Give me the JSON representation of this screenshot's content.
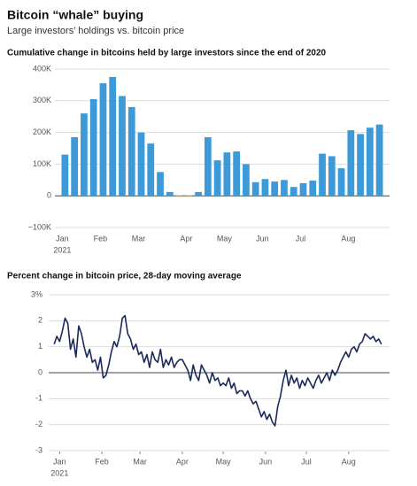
{
  "header": {
    "title": "Bitcoin “whale” buying",
    "subtitle": "Large investors’ holdings vs. bitcoin price"
  },
  "chart_data": [
    {
      "type": "bar",
      "title": "Cumulative change in bitcoins held by large investors since the end of 2020",
      "categories": [
        "Jan",
        null,
        null,
        null,
        "Feb",
        null,
        null,
        null,
        "Mar",
        null,
        null,
        null,
        null,
        "Apr",
        null,
        null,
        null,
        "May",
        null,
        null,
        null,
        "Jun",
        null,
        null,
        null,
        "Jul",
        null,
        null,
        null,
        null,
        "Aug",
        null,
        null,
        null
      ],
      "x_sublabel": "2021",
      "values": [
        130000,
        185000,
        260000,
        305000,
        355000,
        375000,
        315000,
        280000,
        200000,
        165000,
        75000,
        12000,
        -3000,
        -3000,
        12000,
        185000,
        112000,
        137000,
        140000,
        100000,
        43000,
        53000,
        45000,
        50000,
        28000,
        40000,
        48000,
        133000,
        125000,
        87000,
        207000,
        195000,
        215000,
        225000
      ],
      "color": "#3d9ad9",
      "negative_color": "#e8b424",
      "ylim": [
        -100000,
        400000
      ],
      "yticks": [
        {
          "value": -100000,
          "label": "−100K"
        },
        0,
        {
          "value": 100000,
          "label": "100K"
        },
        {
          "value": 200000,
          "label": "200K"
        },
        {
          "value": 300000,
          "label": "300K"
        },
        {
          "value": 400000,
          "label": "400K"
        }
      ],
      "grid": true
    },
    {
      "type": "line",
      "title": "Percent change in bitcoin price, 28-day moving average",
      "x": [
        -3,
        -1,
        1,
        3,
        5,
        7,
        9,
        11,
        13,
        15,
        17,
        19,
        21,
        23,
        25,
        27,
        29,
        31,
        33,
        35,
        37,
        39,
        41,
        43,
        45,
        47,
        49,
        51,
        53,
        55,
        57,
        59,
        61,
        63,
        65,
        67,
        69,
        71,
        73,
        75,
        77,
        79,
        81,
        83,
        85,
        87,
        89,
        91,
        93,
        95,
        97,
        99,
        101,
        103,
        105,
        107,
        109,
        111,
        113,
        115,
        117,
        119,
        121,
        123,
        125,
        127,
        129,
        131,
        133,
        135,
        137,
        139,
        141,
        143,
        145,
        147,
        149,
        151,
        153,
        155,
        157,
        159,
        161,
        163,
        165,
        167,
        169,
        171,
        173,
        175,
        177,
        179,
        181,
        183,
        185,
        187,
        189,
        191,
        193,
        195,
        197,
        199,
        201,
        203,
        205,
        207,
        209,
        211,
        213,
        215,
        217,
        219,
        221,
        223,
        225,
        227,
        229,
        231,
        233,
        235,
        237
      ],
      "series": [
        {
          "name": "Bitcoin price",
          "color": "#1b2a5c",
          "values": [
            1.1,
            1.4,
            1.2,
            1.6,
            2.1,
            1.9,
            0.9,
            1.3,
            0.6,
            1.8,
            1.5,
            1.0,
            0.6,
            0.9,
            0.4,
            0.5,
            0.1,
            0.6,
            -0.2,
            -0.1,
            0.3,
            0.8,
            1.2,
            1.0,
            1.4,
            2.1,
            2.2,
            1.5,
            1.3,
            0.9,
            1.1,
            0.7,
            0.8,
            0.4,
            0.7,
            0.2,
            0.8,
            0.5,
            0.4,
            0.9,
            0.2,
            0.5,
            0.3,
            0.6,
            0.2,
            0.4,
            0.5,
            0.5,
            0.3,
            0.1,
            -0.3,
            0.3,
            -0.1,
            -0.3,
            0.3,
            0.1,
            -0.1,
            -0.4,
            0.0,
            -0.3,
            -0.2,
            -0.5,
            -0.4,
            -0.5,
            -0.2,
            -0.6,
            -0.4,
            -0.8,
            -0.7,
            -0.7,
            -0.9,
            -0.7,
            -1.0,
            -1.2,
            -1.1,
            -1.4,
            -1.7,
            -1.5,
            -1.8,
            -1.6,
            -1.9,
            -2.05,
            -1.3,
            -0.9,
            -0.3,
            0.1,
            -0.5,
            -0.1,
            -0.4,
            -0.2,
            -0.6,
            -0.3,
            -0.5,
            -0.2,
            -0.4,
            -0.6,
            -0.3,
            -0.1,
            -0.4,
            -0.2,
            0.0,
            -0.3,
            0.1,
            -0.1,
            0.1,
            0.4,
            0.6,
            0.8,
            0.6,
            0.9,
            1.0,
            0.8,
            1.1,
            1.2,
            1.5,
            1.4,
            1.3,
            1.4,
            1.2,
            1.3,
            1.1
          ]
        }
      ],
      "xlim": [
        -7,
        243
      ],
      "xticks": [
        {
          "value": 1,
          "label": "Jan"
        },
        {
          "value": 32,
          "label": "Feb"
        },
        {
          "value": 60,
          "label": "Mar"
        },
        {
          "value": 91,
          "label": "Apr"
        },
        {
          "value": 121,
          "label": "May"
        },
        {
          "value": 152,
          "label": "Jun"
        },
        {
          "value": 182,
          "label": "Jul"
        },
        {
          "value": 213,
          "label": "Aug"
        }
      ],
      "x_sublabel": "2021",
      "ylim": [
        -3,
        3
      ],
      "yticks": [
        {
          "value": 3,
          "label": "3%"
        },
        2,
        1,
        0,
        -1,
        -2,
        -3
      ],
      "grid": true
    }
  ]
}
